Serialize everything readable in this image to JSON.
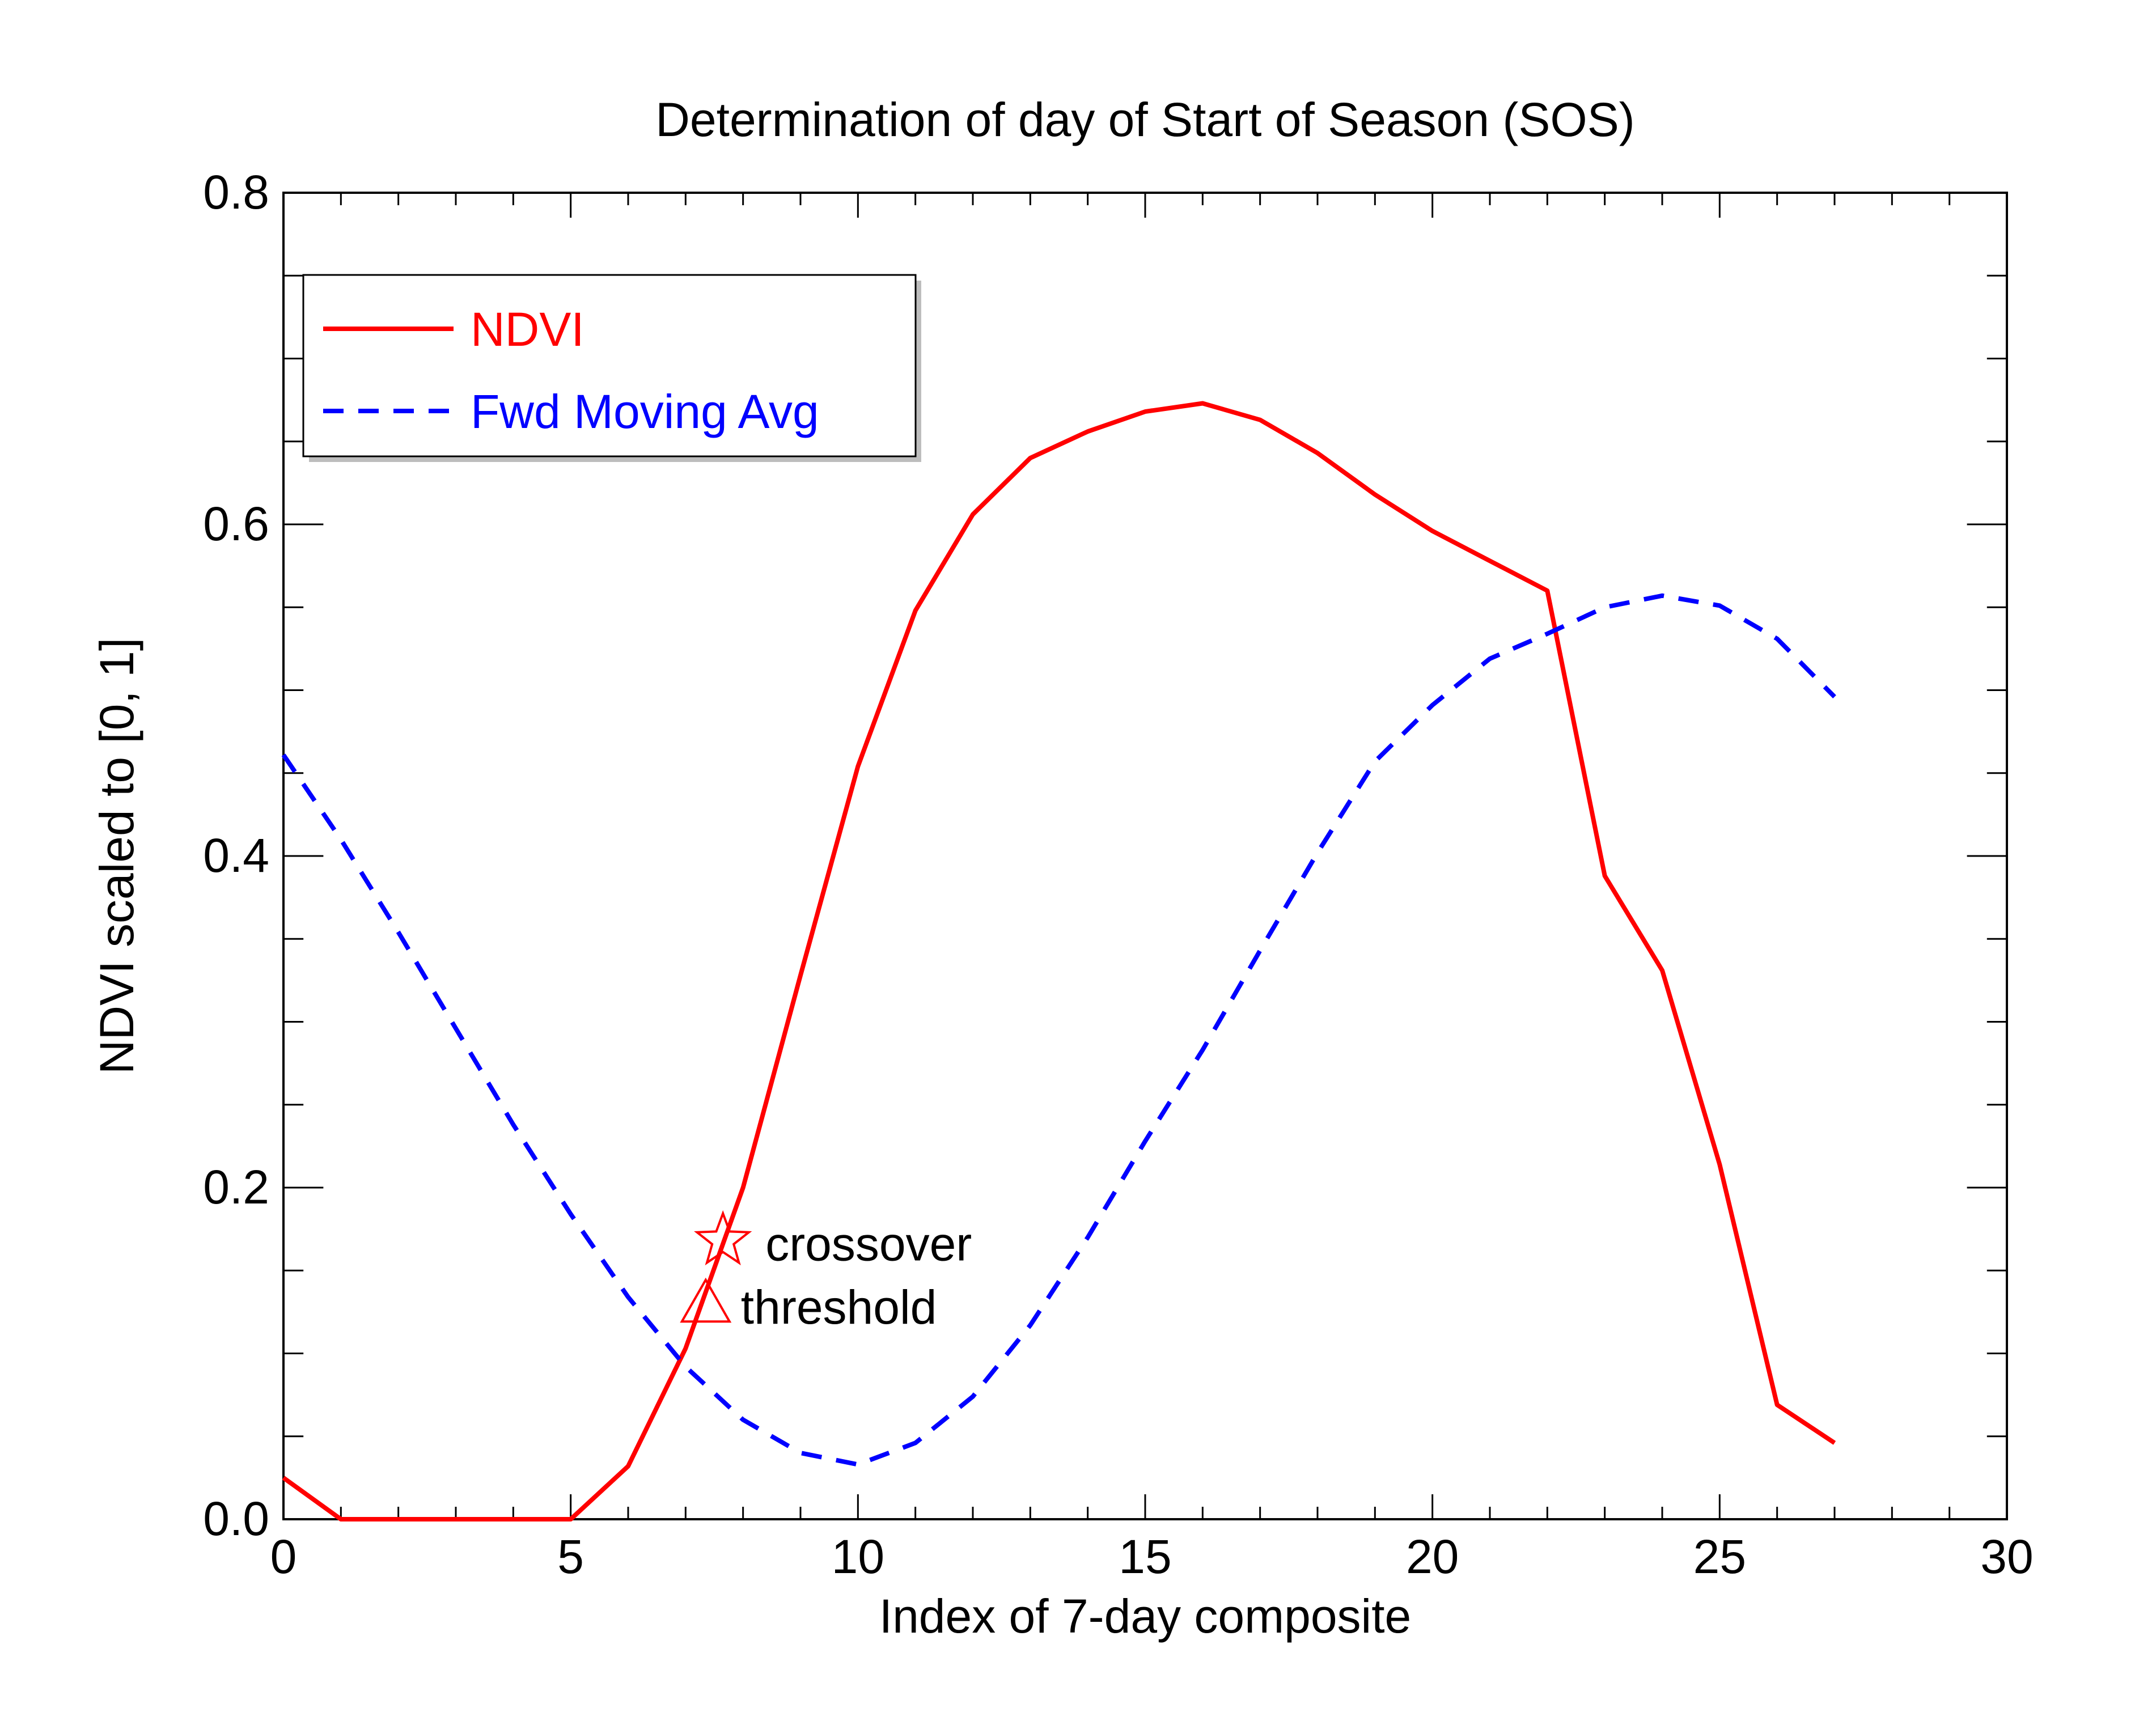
{
  "chart_data": {
    "type": "line",
    "title": "Determination of day of Start of Season (SOS)",
    "xlabel": "Index of 7-day composite",
    "ylabel": "NDVI scaled to [0, 1]",
    "xlim": [
      0,
      30
    ],
    "ylim": [
      0.0,
      0.8
    ],
    "xticks": [
      0,
      5,
      10,
      15,
      20,
      25,
      30
    ],
    "xtick_labels": [
      "0",
      "5",
      "10",
      "15",
      "20",
      "25",
      "30"
    ],
    "yticks": [
      0.0,
      0.2,
      0.4,
      0.6,
      0.8
    ],
    "ytick_labels": [
      "0.0",
      "0.2",
      "0.4",
      "0.6",
      "0.8"
    ],
    "x_minor_step": 1,
    "y_minor_step": 0.05,
    "grid": false,
    "legend_position": "top-left",
    "series": [
      {
        "name": "NDVI",
        "color": "#ff0000",
        "style": "solid",
        "x": [
          0,
          1,
          2,
          3,
          4,
          5,
          6,
          7,
          8,
          9,
          10,
          11,
          12,
          13,
          14,
          15,
          16,
          17,
          18,
          19,
          20,
          21,
          22,
          23,
          24,
          25,
          26,
          27
        ],
        "y": [
          0.025,
          0.0,
          0.0,
          0.0,
          0.0,
          0.0,
          0.032,
          0.103,
          0.2,
          0.328,
          0.454,
          0.548,
          0.606,
          0.64,
          0.656,
          0.668,
          0.673,
          0.663,
          0.643,
          0.618,
          0.596,
          0.578,
          0.56,
          0.388,
          0.331,
          0.214,
          0.069,
          0.046
        ]
      },
      {
        "name": "Fwd Moving Avg",
        "color": "#0000ff",
        "style": "dashed",
        "x": [
          0,
          1,
          2,
          3,
          4,
          5,
          6,
          7,
          8,
          9,
          10,
          11,
          12,
          13,
          14,
          15,
          16,
          17,
          18,
          19,
          20,
          21,
          22,
          23,
          24,
          25,
          26,
          27
        ],
        "y": [
          0.461,
          0.41,
          0.354,
          0.296,
          0.238,
          0.184,
          0.134,
          0.092,
          0.06,
          0.04,
          0.033,
          0.046,
          0.074,
          0.117,
          0.17,
          0.228,
          0.283,
          0.343,
          0.402,
          0.457,
          0.491,
          0.519,
          0.534,
          0.55,
          0.557,
          0.551,
          0.531,
          0.496
        ]
      }
    ],
    "annotations": [
      {
        "text": "crossover",
        "marker": "star",
        "color": "#ff0000",
        "x": 7.65,
        "y": 0.168
      },
      {
        "text": "threshold",
        "marker": "triangle",
        "color": "#ff0000",
        "x": 7.35,
        "y": 0.13
      }
    ]
  }
}
